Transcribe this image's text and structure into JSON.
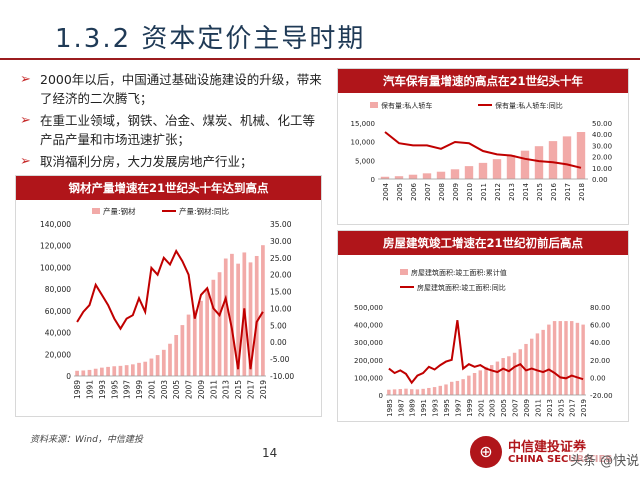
{
  "page": {
    "title": "1.3.2 资本定价主导时期",
    "source": "资料来源：Wind，中信建投",
    "page_number": "14",
    "logo_cn": "中信建投证券",
    "logo_en": "CHINA SECURITIES",
    "watermark": "头条 @快说"
  },
  "bullets": [
    {
      "text": "2000年以后，中国通过基础设施建设的升级，带来了经济的二次腾飞；"
    },
    {
      "text": "在重工业领域，钢铁、冶金、煤炭、机械、化工等产品产量和市场迅速扩张；"
    },
    {
      "text": "取消福利分房，大力发展房地产行业；"
    }
  ],
  "colors": {
    "accent": "#b0151a",
    "bar": "#f2aaa8",
    "line": "#c00000",
    "title": "#1f3a56"
  },
  "chart_data": [
    {
      "type": "bar+line",
      "title": "钢材产量增速在21世纪头十年达到高点",
      "categories": [
        "1989",
        "1990",
        "1991",
        "1992",
        "1993",
        "1994",
        "1995",
        "1996",
        "1997",
        "1998",
        "1999",
        "2000",
        "2001",
        "2002",
        "2003",
        "2004",
        "2005",
        "2006",
        "2007",
        "2008",
        "2009",
        "2010",
        "2011",
        "2012",
        "2013",
        "2014",
        "2015",
        "2016",
        "2017",
        "2018",
        "2019"
      ],
      "tick_labels": [
        "1989",
        "1991",
        "1993",
        "1995",
        "1997",
        "1999",
        "2001",
        "2003",
        "2005",
        "2007",
        "2009",
        "2011",
        "2013",
        "2015",
        "2017",
        "2019"
      ],
      "series": [
        {
          "name": "产量:钢材",
          "axis": "left",
          "kind": "bar",
          "values": [
            4800,
            5100,
            5600,
            6700,
            7700,
            8400,
            8980,
            9340,
            9980,
            10740,
            12110,
            13150,
            16070,
            19250,
            24110,
            29720,
            37770,
            46890,
            56560,
            60460,
            69240,
            80280,
            88620,
            95580,
            108200,
            112510,
            103470,
            113800,
            104640,
            110550,
            120480
          ]
        },
        {
          "name": "产量:钢材:同比",
          "axis": "right",
          "kind": "line",
          "values": [
            6,
            9,
            11,
            17,
            14,
            11,
            7,
            4,
            7,
            8,
            13,
            9,
            22,
            20,
            25,
            23,
            27,
            24,
            20,
            7,
            14,
            16,
            10,
            8,
            13,
            4,
            -8,
            10,
            -8,
            6,
            9
          ]
        }
      ],
      "ylim_left": [
        0,
        140000
      ],
      "yticks_left": [
        "0",
        "20,000",
        "40,000",
        "60,000",
        "80,000",
        "100,000",
        "120,000",
        "140,000"
      ],
      "ylim_right": [
        -10,
        35
      ],
      "yticks_right": [
        "-10.00",
        "-5.00",
        "0.00",
        "5.00",
        "10.00",
        "15.00",
        "20.00",
        "25.00",
        "30.00",
        "35.00"
      ],
      "legend": "top"
    },
    {
      "type": "bar+line",
      "title": "汽车保有量增速的高点在21世纪头十年",
      "categories": [
        "2004",
        "2005",
        "2006",
        "2007",
        "2008",
        "2009",
        "2010",
        "2011",
        "2012",
        "2013",
        "2014",
        "2015",
        "2016",
        "2017",
        "2018"
      ],
      "tick_labels": [
        "2004",
        "2005",
        "2006",
        "2007",
        "2008",
        "2009",
        "2010",
        "2011",
        "2012",
        "2013",
        "2014",
        "2015",
        "2016",
        "2017",
        "2018"
      ],
      "series": [
        {
          "name": "保有量:私人轿车",
          "axis": "left",
          "kind": "bar",
          "values": [
            600,
            750,
            1150,
            1520,
            1950,
            2600,
            3450,
            4320,
            5310,
            6410,
            7590,
            8790,
            10150,
            11420,
            12590
          ]
        },
        {
          "name": "保有量:私人轿车:同比",
          "axis": "right",
          "kind": "line",
          "values": [
            42,
            32,
            30,
            30,
            27,
            33,
            32,
            25,
            22,
            21,
            18,
            16,
            15,
            13,
            10
          ]
        }
      ],
      "ylim_left": [
        0,
        15000
      ],
      "yticks_left": [
        "0",
        "5,000",
        "10,000",
        "15,000"
      ],
      "ylim_right": [
        0,
        50
      ],
      "yticks_right": [
        "0.00",
        "10.00",
        "20.00",
        "30.00",
        "40.00",
        "50.00"
      ],
      "legend": "top"
    },
    {
      "type": "bar+line",
      "title": "房屋建筑竣工增速在21世纪初前后高点",
      "categories": [
        "1985",
        "1986",
        "1987",
        "1988",
        "1989",
        "1990",
        "1991",
        "1992",
        "1993",
        "1994",
        "1995",
        "1996",
        "1997",
        "1998",
        "1999",
        "2000",
        "2001",
        "2002",
        "2003",
        "2004",
        "2005",
        "2006",
        "2007",
        "2008",
        "2009",
        "2010",
        "2011",
        "2012",
        "2013",
        "2014",
        "2015",
        "2016",
        "2017",
        "2018",
        "2019"
      ],
      "tick_labels": [
        "1985",
        "1987",
        "1989",
        "1991",
        "1993",
        "1995",
        "1997",
        "1999",
        "2001",
        "2003",
        "2005",
        "2007",
        "2009",
        "2011",
        "2013",
        "2015",
        "2017",
        "2019"
      ],
      "series": [
        {
          "name": "房屋建筑面积:竣工面积:累计值",
          "axis": "left",
          "kind": "bar",
          "values": [
            30000,
            32000,
            34000,
            36000,
            33000,
            32000,
            35000,
            40000,
            45000,
            52000,
            60000,
            75000,
            80000,
            90000,
            110000,
            125000,
            140000,
            160000,
            170000,
            190000,
            210000,
            220000,
            240000,
            260000,
            290000,
            320000,
            350000,
            370000,
            400000,
            420000,
            420000,
            420000,
            420000,
            410000,
            400000
          ]
        },
        {
          "name": "房屋建筑面积:竣工面积:同比",
          "axis": "right",
          "kind": "line",
          "values": [
            10,
            5,
            8,
            4,
            -6,
            2,
            5,
            12,
            9,
            14,
            18,
            20,
            65,
            10,
            15,
            12,
            14,
            10,
            8,
            6,
            10,
            7,
            12,
            15,
            8,
            10,
            8,
            6,
            9,
            5,
            0,
            -1,
            2,
            0,
            -2
          ]
        }
      ],
      "ylim_left": [
        0,
        500000
      ],
      "yticks_left": [
        "0",
        "100,000",
        "200,000",
        "300,000",
        "400,000",
        "500,000"
      ],
      "ylim_right": [
        -20,
        80
      ],
      "yticks_right": [
        "-20.00",
        "0.00",
        "20.00",
        "40.00",
        "60.00",
        "80.00"
      ],
      "legend": "top"
    }
  ]
}
